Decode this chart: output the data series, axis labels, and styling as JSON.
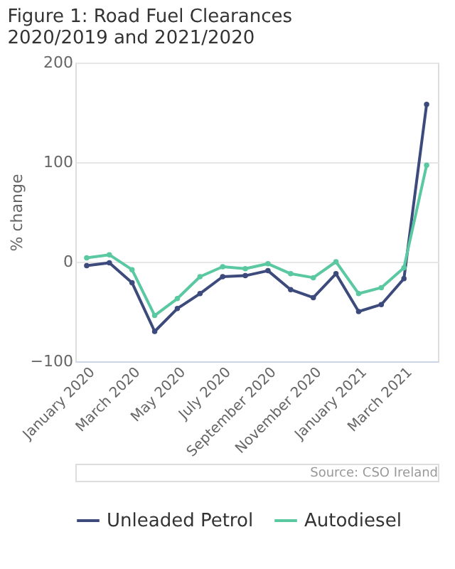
{
  "chart_data": {
    "type": "line",
    "title": "Figure 1: Road Fuel Clearances 2020/2019 and 2021/2020",
    "ylabel": "% change",
    "categories": [
      "January 2020",
      null,
      "March 2020",
      null,
      "May 2020",
      null,
      "July 2020",
      null,
      "September 2020",
      null,
      "November 2020",
      null,
      "January 2021",
      null,
      "March 2021",
      null
    ],
    "series": [
      {
        "name": "Unleaded Petrol",
        "color": "#3c4a7c",
        "values": [
          -4,
          -1,
          -21,
          -70,
          -47,
          -32,
          -15,
          -14,
          -9,
          -28,
          -36,
          -12,
          -50,
          -43,
          -17,
          158
        ]
      },
      {
        "name": "Autodiesel",
        "color": "#5ac8a0",
        "values": [
          4,
          7,
          -8,
          -54,
          -37,
          -15,
          -5,
          -7,
          -2,
          -12,
          -16,
          0,
          -32,
          -26,
          -6,
          97
        ]
      }
    ],
    "ylim": [
      -100,
      200
    ],
    "yticks": [
      -100,
      0,
      100,
      200
    ],
    "grid": "y",
    "legend": "bottom",
    "marker": "circle",
    "line_style": "solid",
    "annotations": [
      "Source: CSO Ireland"
    ]
  }
}
